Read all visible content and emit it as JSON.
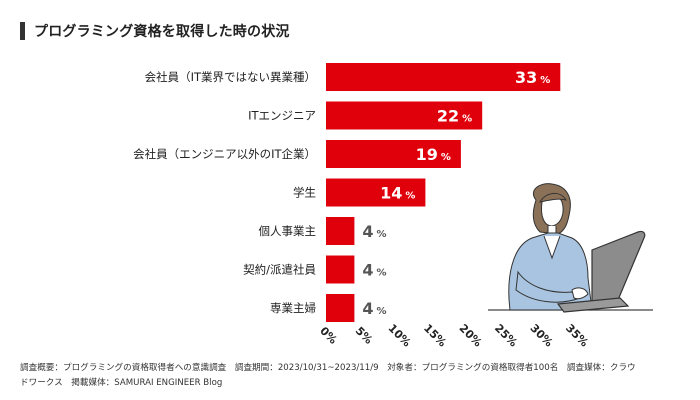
{
  "title": "プログラミング資格を取得した時の状況",
  "chart_data": {
    "type": "bar",
    "orientation": "horizontal",
    "categories": [
      "会社員（IT業界ではない異業種）",
      "ITエンジニア",
      "会社員（エンジニア以外のIT企業）",
      "学生",
      "個人事業主",
      "契約/派遣社員",
      "専業主婦"
    ],
    "values": [
      33,
      22,
      19,
      14,
      4,
      4,
      4
    ],
    "value_suffix": "%",
    "xlim": [
      0,
      35
    ],
    "xticks": [
      "0%",
      "5%",
      "10%",
      "15%",
      "20%",
      "25%",
      "30%",
      "35%"
    ],
    "grid": false,
    "legend": "none"
  },
  "colors": {
    "bar": "#e0000c",
    "label_inside": "#ffffff",
    "label_outside": "#555555"
  },
  "footer": {
    "line1": "調査概要：プログラミングの資格取得者への意識調査　調査期間：2023/10/31~2023/11/9　対象者：プログラミングの資格取得者100名　調査媒体：クラウ",
    "line2": "ドワークス　掲載媒体：SAMURAI ENGINEER Blog"
  }
}
